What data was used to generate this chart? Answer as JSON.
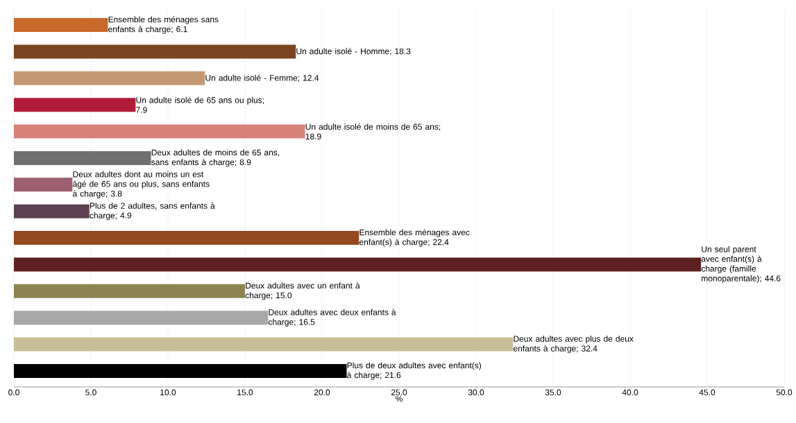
{
  "chart_data": {
    "type": "bar",
    "orientation": "horizontal",
    "xlabel": "%",
    "categories": [
      null,
      null,
      null,
      null,
      null,
      null,
      null,
      null,
      null,
      null,
      null,
      null,
      null,
      null
    ],
    "values": [
      6.1,
      18.3,
      12.4,
      7.9,
      18.9,
      8.9,
      3.8,
      4.9,
      22.4,
      44.6,
      15.0,
      16.5,
      32.4,
      21.6
    ],
    "value_labels": [
      "Ensemble des ménages sans enfants à charge; 6.1",
      "Un adulte isolé - Homme; 18.3",
      "Un adulte isolé - Femme; 12.4",
      "Un adulte isolé de 65 ans ou plus; 7.9",
      "Un adulte isolé de moins de 65 ans; 18.9",
      "Deux adultes de moins de 65 ans, sans enfants à charge; 8.9",
      "Deux adultes dont au moins un est âgé de 65 ans ou plus, sans enfants à charge; 3.8",
      "Plus de 2 adultes, sans enfants à charge; 4.9",
      "Ensemble des ménages avec enfant(s) à charge; 22.4",
      "Un seul parent avec enfant(s) à charge (famille monoparentale); 44.6",
      "Deux adultes avec un enfant à charge; 15.0",
      "Deux adultes avec deux enfants à charge; 16.5",
      "Deux adultes avec plus de deux enfants à charge; 32.4",
      "Plus de deux adultes avec enfant(s) à charge; 21.6"
    ],
    "colors": [
      "#c8682a",
      "#7a4420",
      "#c49a74",
      "#b01c38",
      "#d8827a",
      "#707070",
      "#9c6070",
      "#5e4050",
      "#94491f",
      "#5e2020",
      "#8c8450",
      "#a8a8a8",
      "#c8be98",
      "#000000"
    ],
    "xlim": [
      0,
      50
    ],
    "xticks": [
      {
        "value": 0,
        "label": "0.0"
      },
      {
        "value": 5,
        "label": "5.0"
      },
      {
        "value": 10,
        "label": "10.0"
      },
      {
        "value": 15,
        "label": "15.0"
      },
      {
        "value": 20,
        "label": "20.0"
      },
      {
        "value": 25,
        "label": "25.0"
      },
      {
        "value": 30,
        "label": "30.0"
      },
      {
        "value": 35,
        "label": "35.0"
      },
      {
        "value": 40,
        "label": "40.0"
      },
      {
        "value": 45,
        "label": "45.0"
      },
      {
        "value": 50,
        "label": "50.0"
      }
    ],
    "grid": "x",
    "tick_labels": "x"
  }
}
